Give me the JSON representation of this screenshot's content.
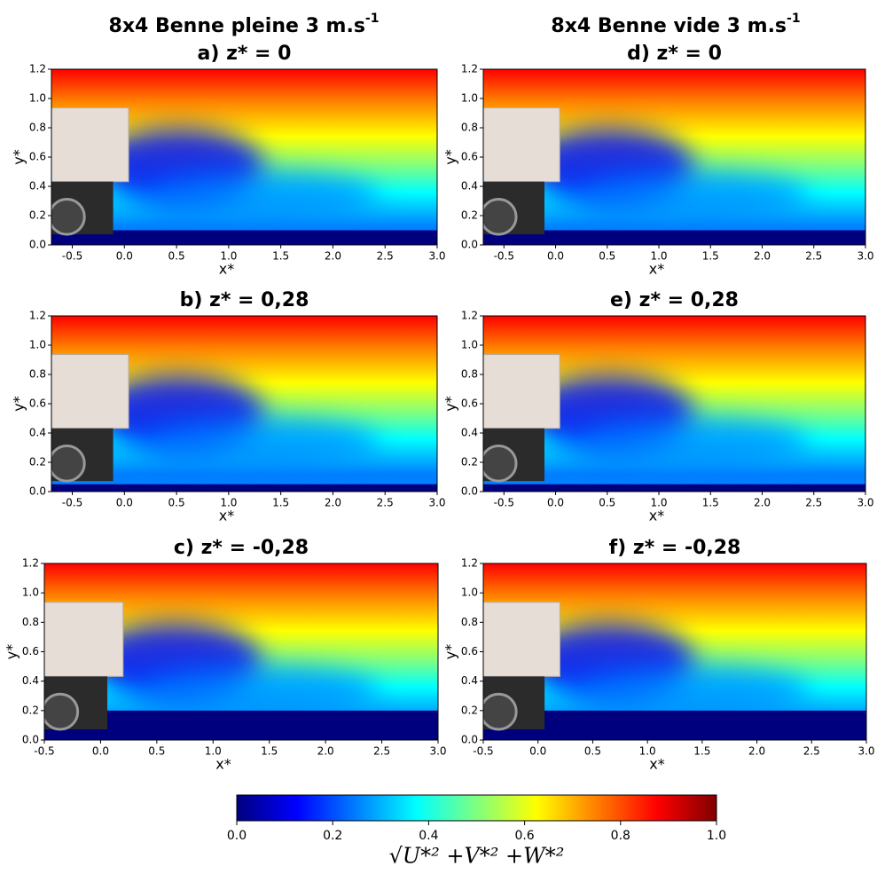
{
  "column_titles": [
    {
      "text": "8x4 Benne pleine 3 m.s",
      "superscript": "-1"
    },
    {
      "text": "8x4 Benne vide 3 m.s",
      "superscript": "-1"
    }
  ],
  "chart_data": [
    {
      "type": "heatmap",
      "title": "a) z* = 0",
      "xlabel": "x*",
      "ylabel": "y*",
      "xlim": [
        -0.7,
        3.0
      ],
      "ylim": [
        0,
        1.2
      ],
      "xticks": [
        -0.5,
        {
          "value": 0,
          "label": "0.0"
        },
        0.5,
        {
          "value": 1,
          "label": "1.0"
        },
        1.5,
        {
          "value": 2,
          "label": "2.0"
        },
        2.5,
        {
          "value": 3,
          "label": "3.0"
        }
      ],
      "yticks": [
        {
          "value": 0,
          "label": "0.0"
        },
        0.2,
        0.4,
        0.6,
        0.8,
        {
          "value": 1,
          "label": "1.0"
        },
        1.2
      ]
    },
    {
      "type": "heatmap",
      "title": "b) z* = 0,28",
      "xlabel": "x*",
      "ylabel": "y*",
      "xlim": [
        -0.7,
        3.0
      ],
      "ylim": [
        0,
        1.2
      ],
      "xticks": [
        -0.5,
        {
          "value": 0,
          "label": "0.0"
        },
        0.5,
        {
          "value": 1,
          "label": "1.0"
        },
        1.5,
        {
          "value": 2,
          "label": "2.0"
        },
        2.5,
        {
          "value": 3,
          "label": "3.0"
        }
      ],
      "yticks": [
        {
          "value": 0,
          "label": "0.0"
        },
        0.2,
        0.4,
        0.6,
        0.8,
        {
          "value": 1,
          "label": "1.0"
        },
        1.2
      ]
    },
    {
      "type": "heatmap",
      "title": "c) z* = -0,28",
      "xlabel": "x*",
      "ylabel": "y*",
      "xlim": [
        -0.5,
        3.0
      ],
      "ylim": [
        0,
        1.2
      ],
      "xticks": [
        -0.5,
        {
          "value": 0,
          "label": "0.0"
        },
        0.5,
        {
          "value": 1,
          "label": "1.0"
        },
        1.5,
        {
          "value": 2,
          "label": "2.0"
        },
        2.5,
        {
          "value": 3,
          "label": "3.0"
        }
      ],
      "yticks": [
        {
          "value": 0,
          "label": "0.0"
        },
        0.2,
        0.4,
        0.6,
        0.8,
        {
          "value": 1,
          "label": "1.0"
        },
        1.2
      ]
    },
    {
      "type": "heatmap",
      "title": "d) z* = 0",
      "xlabel": "x*",
      "ylabel": "y*",
      "xlim": [
        -0.7,
        3.0
      ],
      "ylim": [
        0,
        1.2
      ],
      "xticks": [
        -0.5,
        {
          "value": 0,
          "label": "0.0"
        },
        0.5,
        {
          "value": 1,
          "label": "1.0"
        },
        1.5,
        {
          "value": 2,
          "label": "2.0"
        },
        2.5,
        {
          "value": 3,
          "label": "3.0"
        }
      ],
      "yticks": [
        {
          "value": 0,
          "label": "0.0"
        },
        0.2,
        0.4,
        0.6,
        0.8,
        {
          "value": 1,
          "label": "1.0"
        },
        1.2
      ]
    },
    {
      "type": "heatmap",
      "title": "e) z* = 0,28",
      "xlabel": "x*",
      "ylabel": "y*",
      "xlim": [
        -0.7,
        3.0
      ],
      "ylim": [
        0,
        1.2
      ],
      "xticks": [
        -0.5,
        {
          "value": 0,
          "label": "0.0"
        },
        0.5,
        {
          "value": 1,
          "label": "1.0"
        },
        1.5,
        {
          "value": 2,
          "label": "2.0"
        },
        2.5,
        {
          "value": 3,
          "label": "3.0"
        }
      ],
      "yticks": [
        {
          "value": 0,
          "label": "0.0"
        },
        0.2,
        0.4,
        0.6,
        0.8,
        {
          "value": 1,
          "label": "1.0"
        },
        1.2
      ]
    },
    {
      "type": "heatmap",
      "title": "f) z* = -0,28",
      "xlabel": "x*",
      "ylabel": "y*",
      "xlim": [
        -0.5,
        3.0
      ],
      "ylim": [
        0,
        1.2
      ],
      "xticks": [
        -0.5,
        {
          "value": 0,
          "label": "0.0"
        },
        0.5,
        {
          "value": 1,
          "label": "1.0"
        },
        1.5,
        {
          "value": 2,
          "label": "2.0"
        },
        2.5,
        {
          "value": 3,
          "label": "3.0"
        }
      ],
      "yticks": [
        {
          "value": 0,
          "label": "0.0"
        },
        0.2,
        0.4,
        0.6,
        0.8,
        {
          "value": 1,
          "label": "1.0"
        },
        1.2
      ]
    },
    {
      "type": "colorbar",
      "label": "√U*² +V*² +W*²",
      "xlim": [
        0,
        1
      ],
      "xticks": [
        {
          "value": 0,
          "label": "0.0"
        },
        0.2,
        0.4,
        0.6,
        0.8,
        {
          "value": 1,
          "label": "1.0"
        }
      ],
      "colors": [
        "#00007f",
        "#0000ff",
        "#007fff",
        "#00ffff",
        "#7fff7f",
        "#ffff00",
        "#ff7f00",
        "#ff0000",
        "#7f0000"
      ]
    }
  ]
}
